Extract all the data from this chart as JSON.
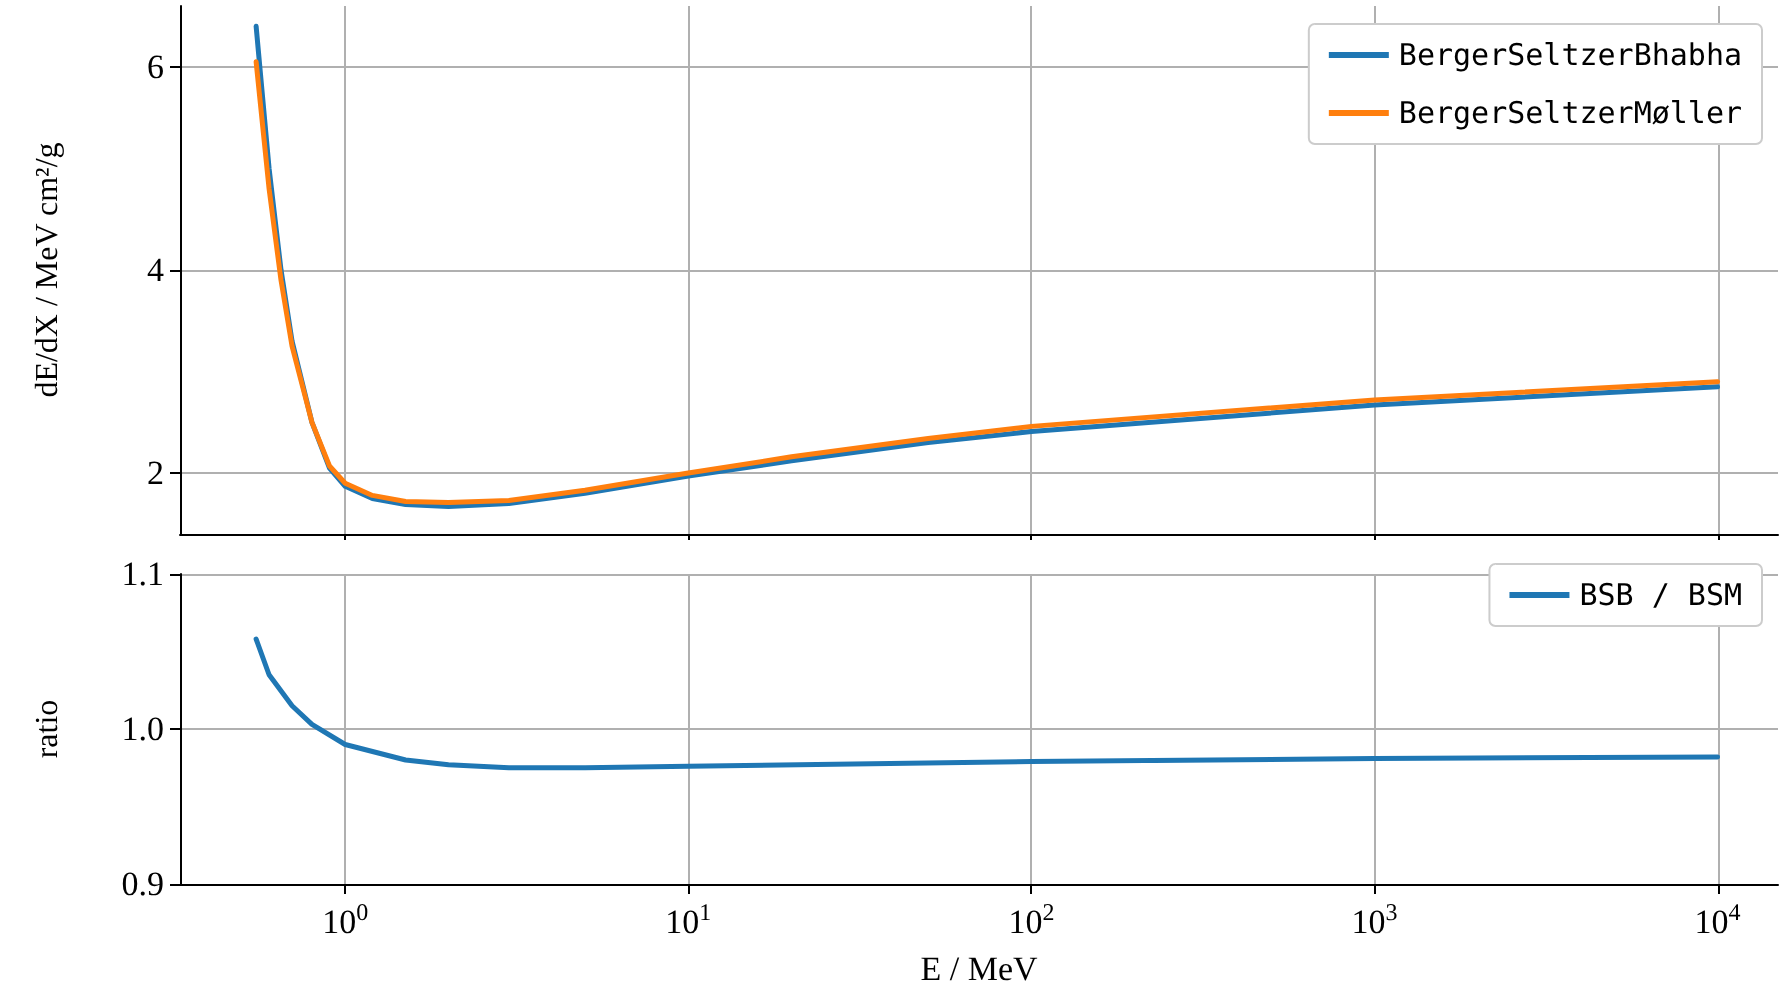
{
  "chart_data": [
    {
      "type": "line",
      "ylabel": "dE/dX / MeV cm²/g",
      "xlim": [
        0.33,
        15000
      ],
      "ylim": [
        1.4,
        6.6
      ],
      "log": "x",
      "grid": true,
      "legend": "top right",
      "tick_labels": "y",
      "xticks": [
        {
          "value": 1,
          "label": null
        },
        {
          "value": 10,
          "label": null
        },
        {
          "value": 100,
          "label": null
        },
        {
          "value": 1000,
          "label": null
        },
        {
          "value": 10000,
          "label": null
        }
      ],
      "yticks": [
        2,
        4,
        6
      ],
      "x": [
        0.55,
        0.6,
        0.65,
        0.7,
        0.8,
        0.9,
        1,
        1.2,
        1.5,
        2,
        3,
        5,
        10,
        20,
        50,
        100,
        1000,
        10000
      ],
      "series": [
        {
          "name": "BergerSeltzerBhabha",
          "color": "#1f77b4",
          "values": [
            6.4,
            5.0,
            4.0,
            3.3,
            2.5,
            2.05,
            1.87,
            1.75,
            1.69,
            1.67,
            1.7,
            1.8,
            1.97,
            2.12,
            2.3,
            2.41,
            2.67,
            2.85
          ]
        },
        {
          "name": "BergerSeltzerMøller",
          "color": "#ff7f0e",
          "values": [
            6.05,
            4.8,
            3.9,
            3.25,
            2.5,
            2.07,
            1.9,
            1.78,
            1.72,
            1.71,
            1.73,
            1.83,
            2.0,
            2.16,
            2.34,
            2.46,
            2.72,
            2.9
          ]
        }
      ]
    },
    {
      "type": "line",
      "xlabel": "E / MeV",
      "ylabel": "ratio",
      "xlim": [
        0.33,
        15000
      ],
      "ylim": [
        0.9,
        1.1
      ],
      "log": "x",
      "grid": true,
      "legend": "top right",
      "xticks": [
        {
          "value": 1,
          "label": "10$^{0}$"
        },
        {
          "value": 10,
          "label": "10$^{1}$"
        },
        {
          "value": 100,
          "label": "10$^{2}$"
        },
        {
          "value": 1000,
          "label": "10$^{3}$"
        },
        {
          "value": 10000,
          "label": "10$^{4}$"
        }
      ],
      "yticks": [
        {
          "value": 0.9,
          "label": "0.9"
        },
        {
          "value": 1,
          "label": "1.0"
        },
        {
          "value": 1.1,
          "label": "1.1"
        }
      ],
      "x": [
        0.55,
        0.6,
        0.7,
        0.8,
        1,
        1.5,
        2,
        3,
        5,
        10,
        100,
        1000,
        10000
      ],
      "series": [
        {
          "name": "BSB / BSM",
          "color": "#1f77b4",
          "values": [
            1.058,
            1.035,
            1.015,
            1.003,
            0.99,
            0.98,
            0.977,
            0.975,
            0.975,
            0.976,
            0.979,
            0.981,
            0.982
          ]
        }
      ]
    }
  ]
}
